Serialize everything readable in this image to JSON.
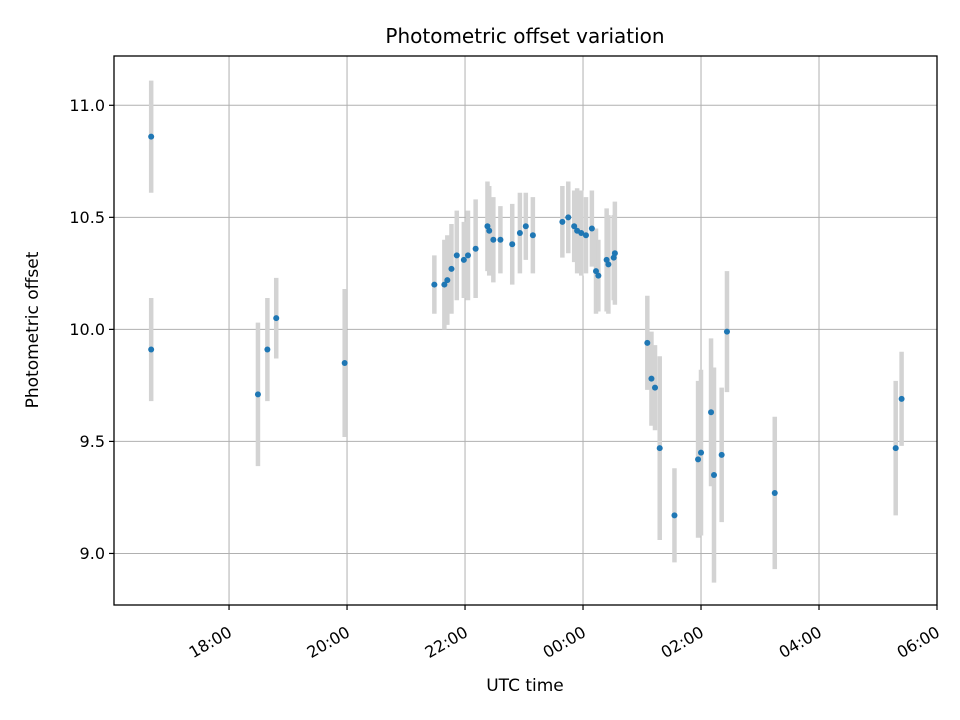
{
  "chart_data": {
    "type": "scatter",
    "title": "Photometric offset variation",
    "xlabel": "UTC time",
    "ylabel": "Photometric offset",
    "x_unit": "hours since 00:00 UTC (negative = previous day)",
    "xlim": [
      -7.95,
      6.0
    ],
    "ylim": [
      8.77,
      11.22
    ],
    "x_ticks": [
      {
        "value": -6,
        "label": "18:00"
      },
      {
        "value": -4,
        "label": "20:00"
      },
      {
        "value": -2,
        "label": "22:00"
      },
      {
        "value": 0,
        "label": "00:00"
      },
      {
        "value": 2,
        "label": "02:00"
      },
      {
        "value": 4,
        "label": "04:00"
      },
      {
        "value": 6,
        "label": "06:00"
      }
    ],
    "y_ticks": [
      {
        "value": 9.0,
        "label": "9.0"
      },
      {
        "value": 9.5,
        "label": "9.5"
      },
      {
        "value": 10.0,
        "label": "10.0"
      },
      {
        "value": 10.5,
        "label": "10.5"
      },
      {
        "value": 11.0,
        "label": "11.0"
      }
    ],
    "grid": true,
    "colors": {
      "point": "#1f77b4",
      "errorbar": "#d3d3d3",
      "grid": "#b0b0b0",
      "axis": "#000000"
    },
    "points": [
      {
        "x": -7.32,
        "y": 10.86,
        "err": 0.25
      },
      {
        "x": -7.32,
        "y": 9.91,
        "err": 0.23
      },
      {
        "x": -5.51,
        "y": 9.71,
        "err": 0.32
      },
      {
        "x": -5.35,
        "y": 9.91,
        "err": 0.23
      },
      {
        "x": -5.2,
        "y": 10.05,
        "err": 0.18
      },
      {
        "x": -4.04,
        "y": 9.85,
        "err": 0.33
      },
      {
        "x": -2.52,
        "y": 10.2,
        "err": 0.13
      },
      {
        "x": -2.35,
        "y": 10.2,
        "err": 0.2
      },
      {
        "x": -2.3,
        "y": 10.22,
        "err": 0.2
      },
      {
        "x": -2.23,
        "y": 10.27,
        "err": 0.2
      },
      {
        "x": -2.14,
        "y": 10.33,
        "err": 0.2
      },
      {
        "x": -2.02,
        "y": 10.31,
        "err": 0.17
      },
      {
        "x": -1.95,
        "y": 10.33,
        "err": 0.2
      },
      {
        "x": -1.82,
        "y": 10.36,
        "err": 0.22
      },
      {
        "x": -1.62,
        "y": 10.46,
        "err": 0.2
      },
      {
        "x": -1.59,
        "y": 10.44,
        "err": 0.2
      },
      {
        "x": -1.52,
        "y": 10.4,
        "err": 0.19
      },
      {
        "x": -1.4,
        "y": 10.4,
        "err": 0.15
      },
      {
        "x": -1.2,
        "y": 10.38,
        "err": 0.18
      },
      {
        "x": -1.07,
        "y": 10.43,
        "err": 0.18
      },
      {
        "x": -0.97,
        "y": 10.46,
        "err": 0.15
      },
      {
        "x": -0.85,
        "y": 10.42,
        "err": 0.17
      },
      {
        "x": -0.35,
        "y": 10.48,
        "err": 0.16
      },
      {
        "x": -0.25,
        "y": 10.5,
        "err": 0.16
      },
      {
        "x": -0.15,
        "y": 10.46,
        "err": 0.16
      },
      {
        "x": -0.1,
        "y": 10.44,
        "err": 0.19
      },
      {
        "x": -0.03,
        "y": 10.43,
        "err": 0.19
      },
      {
        "x": 0.05,
        "y": 10.42,
        "err": 0.17
      },
      {
        "x": 0.15,
        "y": 10.45,
        "err": 0.17
      },
      {
        "x": 0.22,
        "y": 10.26,
        "err": 0.19
      },
      {
        "x": 0.26,
        "y": 10.24,
        "err": 0.16
      },
      {
        "x": 0.4,
        "y": 10.31,
        "err": 0.23
      },
      {
        "x": 0.43,
        "y": 10.29,
        "err": 0.22
      },
      {
        "x": 0.52,
        "y": 10.32,
        "err": 0.19
      },
      {
        "x": 0.54,
        "y": 10.34,
        "err": 0.23
      },
      {
        "x": 1.09,
        "y": 9.94,
        "err": 0.21
      },
      {
        "x": 1.16,
        "y": 9.78,
        "err": 0.21
      },
      {
        "x": 1.22,
        "y": 9.74,
        "err": 0.19
      },
      {
        "x": 1.3,
        "y": 9.47,
        "err": 0.41
      },
      {
        "x": 1.55,
        "y": 9.17,
        "err": 0.21
      },
      {
        "x": 1.95,
        "y": 9.42,
        "err": 0.35
      },
      {
        "x": 2.0,
        "y": 9.45,
        "err": 0.37
      },
      {
        "x": 2.17,
        "y": 9.63,
        "err": 0.33
      },
      {
        "x": 2.22,
        "y": 9.35,
        "err": 0.48
      },
      {
        "x": 2.35,
        "y": 9.44,
        "err": 0.3
      },
      {
        "x": 2.44,
        "y": 9.99,
        "err": 0.27
      },
      {
        "x": 3.25,
        "y": 9.27,
        "err": 0.34
      },
      {
        "x": 5.3,
        "y": 9.47,
        "err": 0.3
      },
      {
        "x": 5.4,
        "y": 9.69,
        "err": 0.21
      }
    ]
  }
}
